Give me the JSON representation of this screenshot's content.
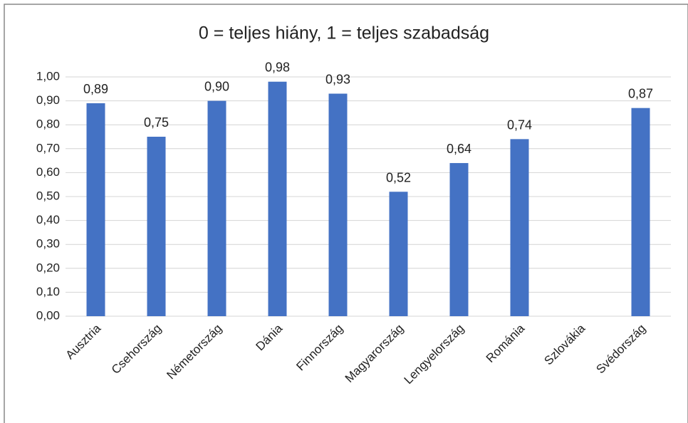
{
  "chart_data": {
    "type": "bar",
    "title": "0 = teljes hiány, 1 = teljes szabadság",
    "categories": [
      "Ausztria",
      "Csehország",
      "Németország",
      "Dánia",
      "Finnország",
      "Magyarország",
      "Lengyelország",
      "Románia",
      "Szlovákia",
      "Svédország"
    ],
    "values": [
      0.89,
      0.75,
      0.9,
      0.98,
      0.93,
      0.52,
      0.64,
      0.74,
      null,
      0.87
    ],
    "value_labels": [
      "0,89",
      "0,75",
      "0,90",
      "0,98",
      "0,93",
      "0,52",
      "0,64",
      "0,74",
      null,
      "0,87"
    ],
    "color": "#4472c4",
    "ylim": [
      0,
      1
    ],
    "yticks": [
      {
        "value": 0,
        "label": "0,00"
      },
      {
        "value": 0.1,
        "label": "0,10"
      },
      {
        "value": 0.2,
        "label": "0,20"
      },
      {
        "value": 0.3,
        "label": "0,30"
      },
      {
        "value": 0.4,
        "label": "0,40"
      },
      {
        "value": 0.5,
        "label": "0,50"
      },
      {
        "value": 0.6,
        "label": "0,60"
      },
      {
        "value": 0.7,
        "label": "0,70"
      },
      {
        "value": 0.8,
        "label": "0,80"
      },
      {
        "value": 0.9,
        "label": "0,90"
      },
      {
        "value": 1,
        "label": "1,00"
      }
    ],
    "grid": true
  }
}
